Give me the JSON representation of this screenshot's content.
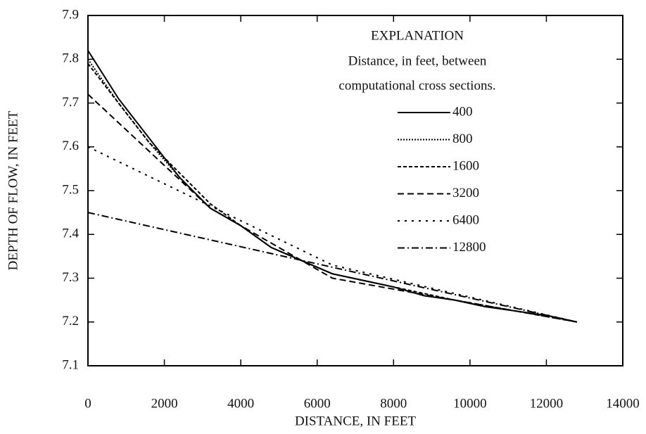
{
  "chart_data": {
    "type": "line",
    "x_label": "DISTANCE, IN FEET",
    "y_label": "DEPTH OF FLOW, IN FEET",
    "legend_title": "EXPLANATION",
    "legend_subtitle": [
      "Distance, in feet, between",
      "computational cross sections."
    ],
    "xlim": [
      0,
      14000
    ],
    "xticks": [
      0,
      2000,
      4000,
      6000,
      8000,
      10000,
      12000,
      14000
    ],
    "ylim": [
      7.1,
      7.9
    ],
    "yticks": [
      7.1,
      7.2,
      7.3,
      7.4,
      7.5,
      7.6,
      7.7,
      7.8,
      7.9
    ],
    "series": [
      {
        "name": "400",
        "color": "#000000",
        "dash": "none",
        "x": [
          0,
          800,
          1600,
          2400,
          3200,
          4000,
          4800,
          5600,
          6400,
          7200,
          8000,
          8800,
          9600,
          10400,
          11200,
          12000,
          12800
        ],
        "values": [
          7.82,
          7.71,
          7.62,
          7.53,
          7.46,
          7.42,
          7.37,
          7.34,
          7.31,
          7.295,
          7.28,
          7.26,
          7.25,
          7.235,
          7.225,
          7.215,
          7.2
        ]
      },
      {
        "name": "800",
        "color": "#000000",
        "dash": "2,2",
        "x": [
          0,
          800,
          1600,
          2400,
          3200,
          4000,
          4800,
          5600,
          6400,
          7200,
          8000,
          8800,
          9600,
          10400,
          11200,
          12000,
          12800
        ],
        "values": [
          7.8,
          7.7,
          7.61,
          7.53,
          7.46,
          7.42,
          7.37,
          7.34,
          7.31,
          7.295,
          7.28,
          7.26,
          7.25,
          7.235,
          7.225,
          7.215,
          7.2
        ]
      },
      {
        "name": "1600",
        "color": "#000000",
        "dash": "5,3",
        "x": [
          0,
          1600,
          3200,
          4800,
          6400,
          8000,
          9600,
          11200,
          12800
        ],
        "values": [
          7.79,
          7.61,
          7.47,
          7.37,
          7.31,
          7.28,
          7.25,
          7.225,
          7.2
        ]
      },
      {
        "name": "3200",
        "color": "#000000",
        "dash": "9,5",
        "x": [
          0,
          3200,
          6400,
          9600,
          12800
        ],
        "values": [
          7.72,
          7.46,
          7.3,
          7.25,
          7.2
        ]
      },
      {
        "name": "6400",
        "color": "#000000",
        "dash": "3,7",
        "x": [
          0,
          6400,
          12800
        ],
        "values": [
          7.6,
          7.33,
          7.2
        ]
      },
      {
        "name": "12800",
        "color": "#000000",
        "dash": "10,4,2,4",
        "x": [
          0,
          12800
        ],
        "values": [
          7.45,
          7.2
        ]
      }
    ]
  }
}
